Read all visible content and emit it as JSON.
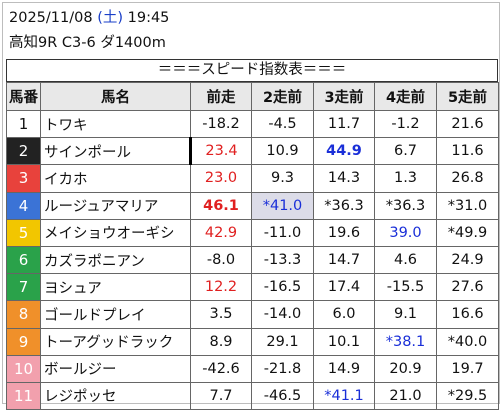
{
  "header": {
    "date": "2025/11/08",
    "weekday": "(土)",
    "time": "19:45",
    "race_info": "高知9R C3-6 ダ1400m"
  },
  "table_title": "＝＝＝スピード指数表＝＝＝",
  "columns": [
    "馬番",
    "馬名",
    "前走",
    "2走前",
    "3走前",
    "4走前",
    "5走前"
  ],
  "colors": {
    "red_value": "#e02020",
    "blue_value": "#1a2fd8",
    "shaded_cell": "#dcdce8",
    "header_bg": "#e8e8e8",
    "weekday": "#1a3fc8"
  },
  "rows": [
    {
      "num": "1",
      "num_bg": "#ffffff",
      "num_fg": "#111111",
      "name": "トワキ",
      "vals": [
        "-18.2",
        "-4.5",
        "11.7",
        "-1.2",
        "21.6"
      ],
      "styles": [
        "",
        "",
        "",
        "",
        ""
      ]
    },
    {
      "num": "2",
      "num_bg": "#222222",
      "num_fg": "#ffffff",
      "name": "サインポール",
      "vals": [
        "23.4",
        "10.9",
        "44.9",
        "6.7",
        "11.6"
      ],
      "styles": [
        "red leftbar",
        "",
        "blue bold",
        "",
        ""
      ]
    },
    {
      "num": "3",
      "num_bg": "#e8423c",
      "num_fg": "#ffffff",
      "name": "イカホ",
      "vals": [
        "23.0",
        "9.3",
        "14.3",
        "1.3",
        "26.8"
      ],
      "styles": [
        "red",
        "",
        "",
        "",
        ""
      ]
    },
    {
      "num": "4",
      "num_bg": "#3b73d6",
      "num_fg": "#ffffff",
      "name": "ルージュアマリア",
      "vals": [
        "46.1",
        "*41.0",
        "*36.3",
        "*36.3",
        "*31.0"
      ],
      "styles": [
        "red bold",
        "blue shade",
        "",
        "",
        ""
      ]
    },
    {
      "num": "5",
      "num_bg": "#f2c600",
      "num_fg": "#ffffff",
      "name": "メイショウオーギシ",
      "vals": [
        "42.9",
        "-11.0",
        "19.6",
        "39.0",
        "*49.9"
      ],
      "styles": [
        "red",
        "",
        "",
        "blue",
        ""
      ]
    },
    {
      "num": "6",
      "num_bg": "#2aa24a",
      "num_fg": "#ffffff",
      "name": "カズラポニアン",
      "vals": [
        "-8.0",
        "-13.3",
        "14.7",
        "4.6",
        "24.9"
      ],
      "styles": [
        "",
        "",
        "",
        "",
        ""
      ]
    },
    {
      "num": "7",
      "num_bg": "#2aa24a",
      "num_fg": "#ffffff",
      "name": "ヨシュア",
      "vals": [
        "12.2",
        "-16.5",
        "17.4",
        "-15.5",
        "27.6"
      ],
      "styles": [
        "red",
        "",
        "",
        "",
        ""
      ]
    },
    {
      "num": "8",
      "num_bg": "#f0902a",
      "num_fg": "#ffffff",
      "name": "ゴールドプレイ",
      "vals": [
        "3.5",
        "-14.0",
        "6.0",
        "9.1",
        "16.6"
      ],
      "styles": [
        "",
        "",
        "",
        "",
        ""
      ]
    },
    {
      "num": "9",
      "num_bg": "#f0902a",
      "num_fg": "#ffffff",
      "name": "トーアグッドラック",
      "vals": [
        "8.9",
        "29.1",
        "10.1",
        "*38.1",
        "*40.0"
      ],
      "styles": [
        "",
        "",
        "",
        "blue",
        ""
      ]
    },
    {
      "num": "10",
      "num_bg": "#f2a0ad",
      "num_fg": "#ffffff",
      "name": "ボールジー",
      "vals": [
        "-42.6",
        "-21.8",
        "14.9",
        "20.9",
        "19.7"
      ],
      "styles": [
        "",
        "",
        "",
        "",
        ""
      ]
    },
    {
      "num": "11",
      "num_bg": "#f2a0ad",
      "num_fg": "#ffffff",
      "name": "レジポッセ",
      "vals": [
        "7.7",
        "-46.5",
        "*41.1",
        "21.0",
        "*29.5"
      ],
      "styles": [
        "",
        "",
        "blue",
        "",
        ""
      ]
    }
  ]
}
